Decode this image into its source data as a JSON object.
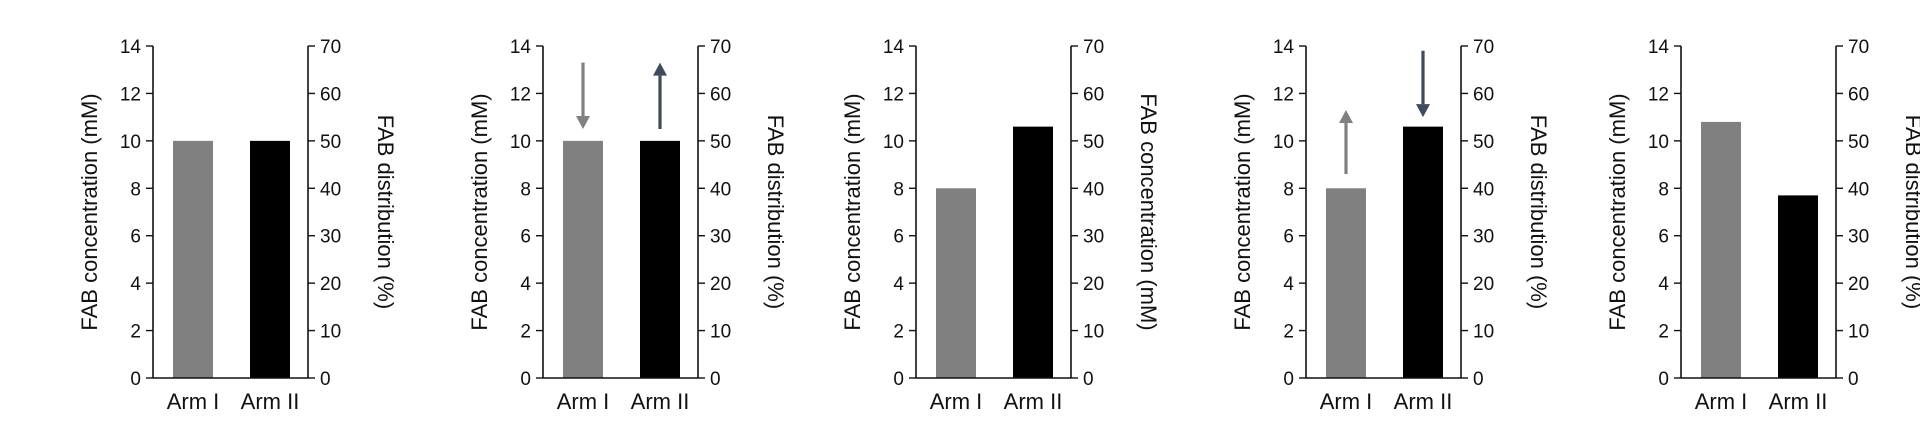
{
  "colors": {
    "arm_i": "#808080",
    "arm_ii": "#000000",
    "arrow_light": "#808080",
    "arrow_dark": "#3f4a5a",
    "axis": "#111111"
  },
  "chart_data": [
    {
      "type": "bar",
      "categories": [
        "Arm I",
        "Arm II"
      ],
      "values": [
        10,
        10
      ],
      "ylabel": "FAB concentration (mM)",
      "ylim": [
        0,
        14
      ],
      "yticks": [
        0,
        2,
        4,
        6,
        8,
        10,
        12,
        14
      ],
      "y2label": "FAB distribution (%)",
      "y2lim": [
        0,
        70
      ],
      "y2ticks": [
        0,
        10,
        20,
        30,
        40,
        50,
        60,
        70
      ],
      "arrows": [],
      "grid": false
    },
    {
      "type": "bar",
      "categories": [
        "Arm I",
        "Arm II"
      ],
      "values": [
        10,
        10
      ],
      "ylabel": "FAB concentration (mM)",
      "ylim": [
        0,
        14
      ],
      "yticks": [
        0,
        2,
        4,
        6,
        8,
        10,
        12,
        14
      ],
      "y2label": "FAB distribution (%)",
      "y2lim": [
        0,
        70
      ],
      "y2ticks": [
        0,
        10,
        20,
        30,
        40,
        50,
        60,
        70
      ],
      "arrows": [
        {
          "category": "Arm I",
          "direction": "down",
          "from": 13.3,
          "to": 10.5,
          "color": "arrow_light"
        },
        {
          "category": "Arm II",
          "direction": "up",
          "from": 10.5,
          "to": 13.3,
          "color": "arrow_dark"
        }
      ],
      "grid": false
    },
    {
      "type": "bar",
      "categories": [
        "Arm I",
        "Arm II"
      ],
      "values": [
        8,
        10.6
      ],
      "ylabel": "FAB concentration (mM)",
      "ylim": [
        0,
        14
      ],
      "yticks": [
        0,
        2,
        4,
        6,
        8,
        10,
        12,
        14
      ],
      "y2label": "FAB concentration (mM)",
      "y2lim": [
        0,
        70
      ],
      "y2ticks": [
        0,
        10,
        20,
        30,
        40,
        50,
        60,
        70
      ],
      "arrows": [],
      "grid": false
    },
    {
      "type": "bar",
      "categories": [
        "Arm I",
        "Arm II"
      ],
      "values": [
        8,
        10.6
      ],
      "ylabel": "FAB concentration (mM)",
      "ylim": [
        0,
        14
      ],
      "yticks": [
        0,
        2,
        4,
        6,
        8,
        10,
        12,
        14
      ],
      "y2label": "FAB distribution (%)",
      "y2lim": [
        0,
        70
      ],
      "y2ticks": [
        0,
        10,
        20,
        30,
        40,
        50,
        60,
        70
      ],
      "arrows": [
        {
          "category": "Arm I",
          "direction": "up",
          "from": 8.6,
          "to": 11.3,
          "color": "arrow_light"
        },
        {
          "category": "Arm II",
          "direction": "down",
          "from": 13.8,
          "to": 11.0,
          "color": "arrow_dark"
        }
      ],
      "grid": false
    },
    {
      "type": "bar",
      "categories": [
        "Arm I",
        "Arm II"
      ],
      "values": [
        10.8,
        7.7
      ],
      "ylabel": "FAB concentration (mM)",
      "ylim": [
        0,
        14
      ],
      "yticks": [
        0,
        2,
        4,
        6,
        8,
        10,
        12,
        14
      ],
      "y2label": "FAB distribution (%)",
      "y2lim": [
        0,
        70
      ],
      "y2ticks": [
        0,
        10,
        20,
        30,
        40,
        50,
        60,
        70
      ],
      "arrows": [],
      "grid": false
    }
  ]
}
